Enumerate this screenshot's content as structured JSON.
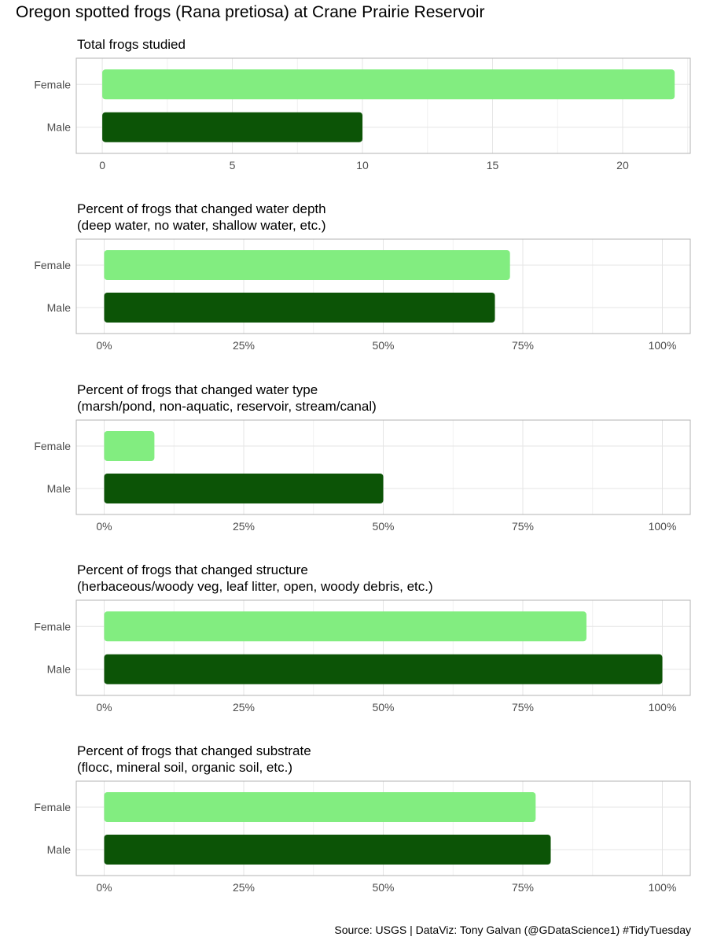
{
  "title": "Oregon spotted frogs (Rana pretiosa) at Crane Prairie Reservoir",
  "caption": "Source: USGS  |  DataViz: Tony Galvan (@GDataScience1) #TidyTuesday",
  "colors": {
    "Female": "#82ed80",
    "Male": "#0c5406",
    "grid": "#e5e5e5",
    "border": "#b3b3b3",
    "axis_text": "#4d4d4d"
  },
  "chart_data": [
    {
      "type": "bar",
      "orientation": "horizontal",
      "title": "Total frogs studied",
      "subtitle": "",
      "categories": [
        "Female",
        "Male"
      ],
      "values": [
        22,
        10
      ],
      "xlim": [
        -1,
        22.6
      ],
      "ticks": [
        0,
        5,
        10,
        15,
        20
      ],
      "tick_labels": [
        "0",
        "5",
        "10",
        "15",
        "20"
      ],
      "grid": true
    },
    {
      "type": "bar",
      "orientation": "horizontal",
      "title": "Percent of frogs that changed water depth",
      "subtitle": "(deep water, no water, shallow water, etc.)",
      "categories": [
        "Female",
        "Male"
      ],
      "values": [
        0.727,
        0.7
      ],
      "xlim": [
        -0.05,
        1.05
      ],
      "ticks": [
        0,
        0.25,
        0.5,
        0.75,
        1
      ],
      "tick_labels": [
        "0%",
        "25%",
        "50%",
        "75%",
        "100%"
      ],
      "grid": true
    },
    {
      "type": "bar",
      "orientation": "horizontal",
      "title": "Percent of frogs that changed water type",
      "subtitle": "(marsh/pond, non-aquatic, reservoir, stream/canal)",
      "categories": [
        "Female",
        "Male"
      ],
      "values": [
        0.09,
        0.5
      ],
      "xlim": [
        -0.05,
        1.05
      ],
      "ticks": [
        0,
        0.25,
        0.5,
        0.75,
        1
      ],
      "tick_labels": [
        "0%",
        "25%",
        "50%",
        "75%",
        "100%"
      ],
      "grid": true
    },
    {
      "type": "bar",
      "orientation": "horizontal",
      "title": "Percent of frogs that changed structure",
      "subtitle": "(herbaceous/woody veg, leaf litter, open, woody debris, etc.)",
      "categories": [
        "Female",
        "Male"
      ],
      "values": [
        0.864,
        1.0
      ],
      "xlim": [
        -0.05,
        1.05
      ],
      "ticks": [
        0,
        0.25,
        0.5,
        0.75,
        1
      ],
      "tick_labels": [
        "0%",
        "25%",
        "50%",
        "75%",
        "100%"
      ],
      "grid": true
    },
    {
      "type": "bar",
      "orientation": "horizontal",
      "title": "Percent of frogs that changed substrate",
      "subtitle": "(flocc, mineral soil, organic soil, etc.)",
      "categories": [
        "Female",
        "Male"
      ],
      "values": [
        0.773,
        0.8
      ],
      "xlim": [
        -0.05,
        1.05
      ],
      "ticks": [
        0,
        0.25,
        0.5,
        0.75,
        1
      ],
      "tick_labels": [
        "0%",
        "25%",
        "50%",
        "75%",
        "100%"
      ],
      "grid": true
    }
  ]
}
